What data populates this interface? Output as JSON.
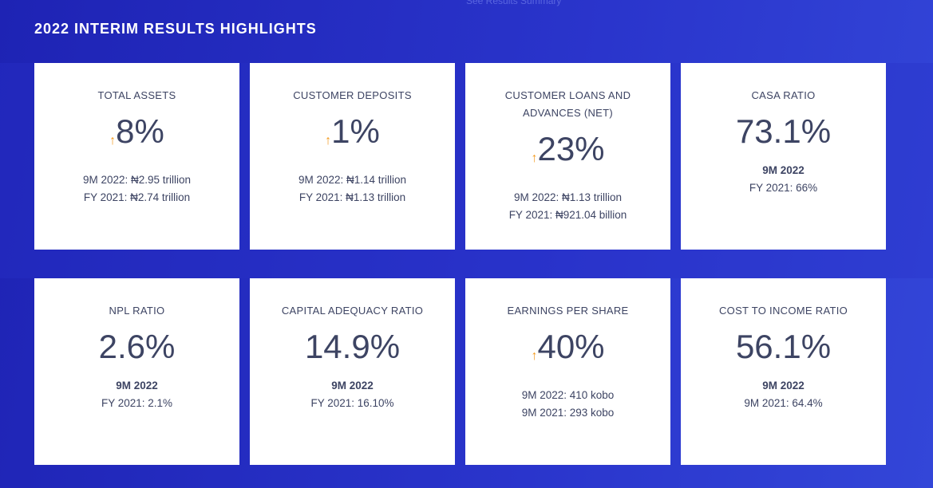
{
  "header": {
    "title": "2022 INTERIM RESULTS HIGHLIGHTS",
    "link": "See Results Summary"
  },
  "cards": [
    {
      "label": "TOTAL ASSETS",
      "value": "8%",
      "arrow": true,
      "lines": [
        "9M 2022: ₦2.95 trillion",
        "FY 2021: ₦2.74 trillion"
      ],
      "bold_first": false
    },
    {
      "label": "CUSTOMER DEPOSITS",
      "value": "1%",
      "arrow": true,
      "lines": [
        "9M 2022: ₦1.14 trillion",
        "FY 2021: ₦1.13 trillion"
      ],
      "bold_first": false
    },
    {
      "label": "CUSTOMER LOANS AND ADVANCES (NET)",
      "value": "23%",
      "arrow": true,
      "lines": [
        "9M 2022: ₦1.13 trillion",
        "FY 2021: ₦921.04 billion"
      ],
      "bold_first": false
    },
    {
      "label": "CASA RATIO",
      "value": "73.1%",
      "arrow": false,
      "lines": [
        "9M 2022",
        "FY 2021: 66%"
      ],
      "bold_first": true
    },
    {
      "label": "NPL RATIO",
      "value": "2.6%",
      "arrow": false,
      "lines": [
        "9M 2022",
        "FY 2021: 2.1%"
      ],
      "bold_first": true
    },
    {
      "label": "CAPITAL ADEQUACY RATIO",
      "value": "14.9%",
      "arrow": false,
      "lines": [
        "9M 2022",
        "FY 2021: 16.10%"
      ],
      "bold_first": true
    },
    {
      "label": "EARNINGS PER SHARE",
      "value": "40%",
      "arrow": true,
      "lines": [
        "9M 2022: 410 kobo",
        "9M 2021: 293 kobo"
      ],
      "bold_first": false
    },
    {
      "label": "COST TO INCOME RATIO",
      "value": "56.1%",
      "arrow": false,
      "lines": [
        "9M 2022",
        "9M 2021: 64.4%"
      ],
      "bold_first": true
    }
  ]
}
